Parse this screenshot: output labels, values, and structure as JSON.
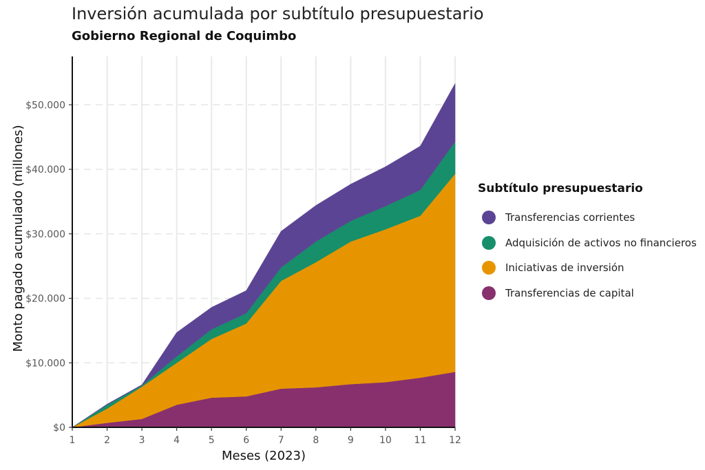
{
  "chart_data": {
    "type": "area",
    "stacked": true,
    "title": "Inversión acumulada por subtítulo presupuestario",
    "subtitle": "Gobierno Regional de Coquimbo",
    "xlabel": "Meses (2023)",
    "ylabel": "Monto pagado acumulado (millones)",
    "x": [
      1,
      2,
      3,
      4,
      5,
      6,
      7,
      8,
      9,
      10,
      11,
      12
    ],
    "x_tick_labels": [
      "1",
      "2",
      "3",
      "4",
      "5",
      "6",
      "7",
      "8",
      "9",
      "10",
      "11",
      "12"
    ],
    "ylim": [
      0,
      57500
    ],
    "y_ticks": [
      0,
      10000,
      20000,
      30000,
      40000,
      50000
    ],
    "y_tick_labels": [
      "$0",
      "$10.000",
      "$20.000",
      "$30.000",
      "$40.000",
      "$50.000"
    ],
    "grid": true,
    "legend_title": "Subtítulo presupuestario",
    "legend_position": "right",
    "series": [
      {
        "name": "Transferencias de capital",
        "color": "#88306E",
        "values": [
          0,
          700,
          1300,
          3500,
          4600,
          4800,
          6000,
          6200,
          6700,
          7000,
          7700,
          8600
        ]
      },
      {
        "name": "Iniciativas de inversión",
        "color": "#E69500",
        "values": [
          0,
          2200,
          5000,
          6500,
          9100,
          11300,
          16700,
          19400,
          22100,
          23700,
          25100,
          30700
        ]
      },
      {
        "name": "Adquisición de activos no financieros",
        "color": "#178F6A",
        "values": [
          0,
          600,
          200,
          1000,
          1500,
          1600,
          2100,
          3200,
          3200,
          3600,
          4000,
          5000
        ]
      },
      {
        "name": "Transferencias corrientes",
        "color": "#5C4494",
        "values": [
          0,
          100,
          100,
          3700,
          3400,
          3500,
          5600,
          5600,
          5700,
          6100,
          6800,
          9000
        ]
      }
    ],
    "legend_order": [
      3,
      2,
      1,
      0
    ]
  }
}
